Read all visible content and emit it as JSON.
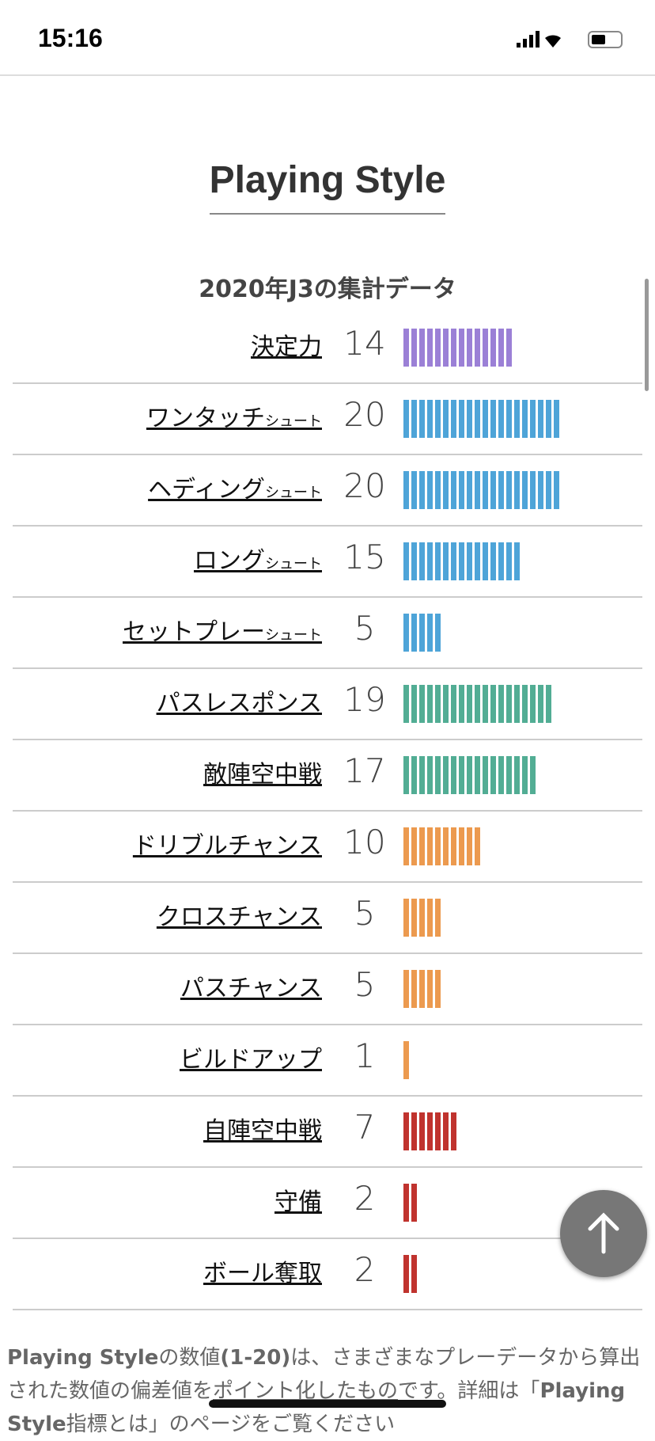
{
  "status_bar": {
    "time": "15:16"
  },
  "section": {
    "title": "Playing Style",
    "subtitle": "2020年J3の集計データ"
  },
  "rows": [
    {
      "label": "決定力",
      "value": 14,
      "color": "#9b80d6"
    },
    {
      "label": "ワンタッチ",
      "suffix": "シュート",
      "value": 20,
      "color": "#4ea4d8"
    },
    {
      "label": "ヘディング",
      "suffix": "シュート",
      "value": 20,
      "color": "#4ea4d8"
    },
    {
      "label": "ロング",
      "suffix": "シュート",
      "value": 15,
      "color": "#4ea4d8"
    },
    {
      "label": "セットプレー",
      "suffix": "シュート",
      "value": 5,
      "color": "#4ea4d8"
    },
    {
      "label": "パスレスポンス",
      "value": 19,
      "color": "#52ad94"
    },
    {
      "label": "敵陣空中戦",
      "value": 17,
      "color": "#52ad94"
    },
    {
      "label": "ドリブルチャンス",
      "value": 10,
      "color": "#ec9a4f"
    },
    {
      "label": "クロスチャンス",
      "value": 5,
      "color": "#ec9a4f"
    },
    {
      "label": "パスチャンス",
      "value": 5,
      "color": "#ec9a4f"
    },
    {
      "label": "ビルドアップ",
      "value": 1,
      "color": "#ec9a4f"
    },
    {
      "label": "自陣空中戦",
      "value": 7,
      "color": "#c0332e"
    },
    {
      "label": "守備",
      "value": 2,
      "color": "#c0332e"
    },
    {
      "label": "ボール奪取",
      "value": 2,
      "color": "#c0332e"
    }
  ],
  "footer": {
    "parts": [
      {
        "text": "Playing Style",
        "bold": true
      },
      {
        "text": "の数値"
      },
      {
        "text": "(1-20)",
        "bold": true
      },
      {
        "text": "は、さまざまなプレーデータから算出された数値の偏差値を"
      },
      {
        "text": "ポイント化したもの",
        "underline": true
      },
      {
        "text": "です。詳細は「"
      },
      {
        "text": "Playing Style",
        "bold": true
      },
      {
        "text": "指標とは」のページをご覧ください"
      }
    ]
  }
}
